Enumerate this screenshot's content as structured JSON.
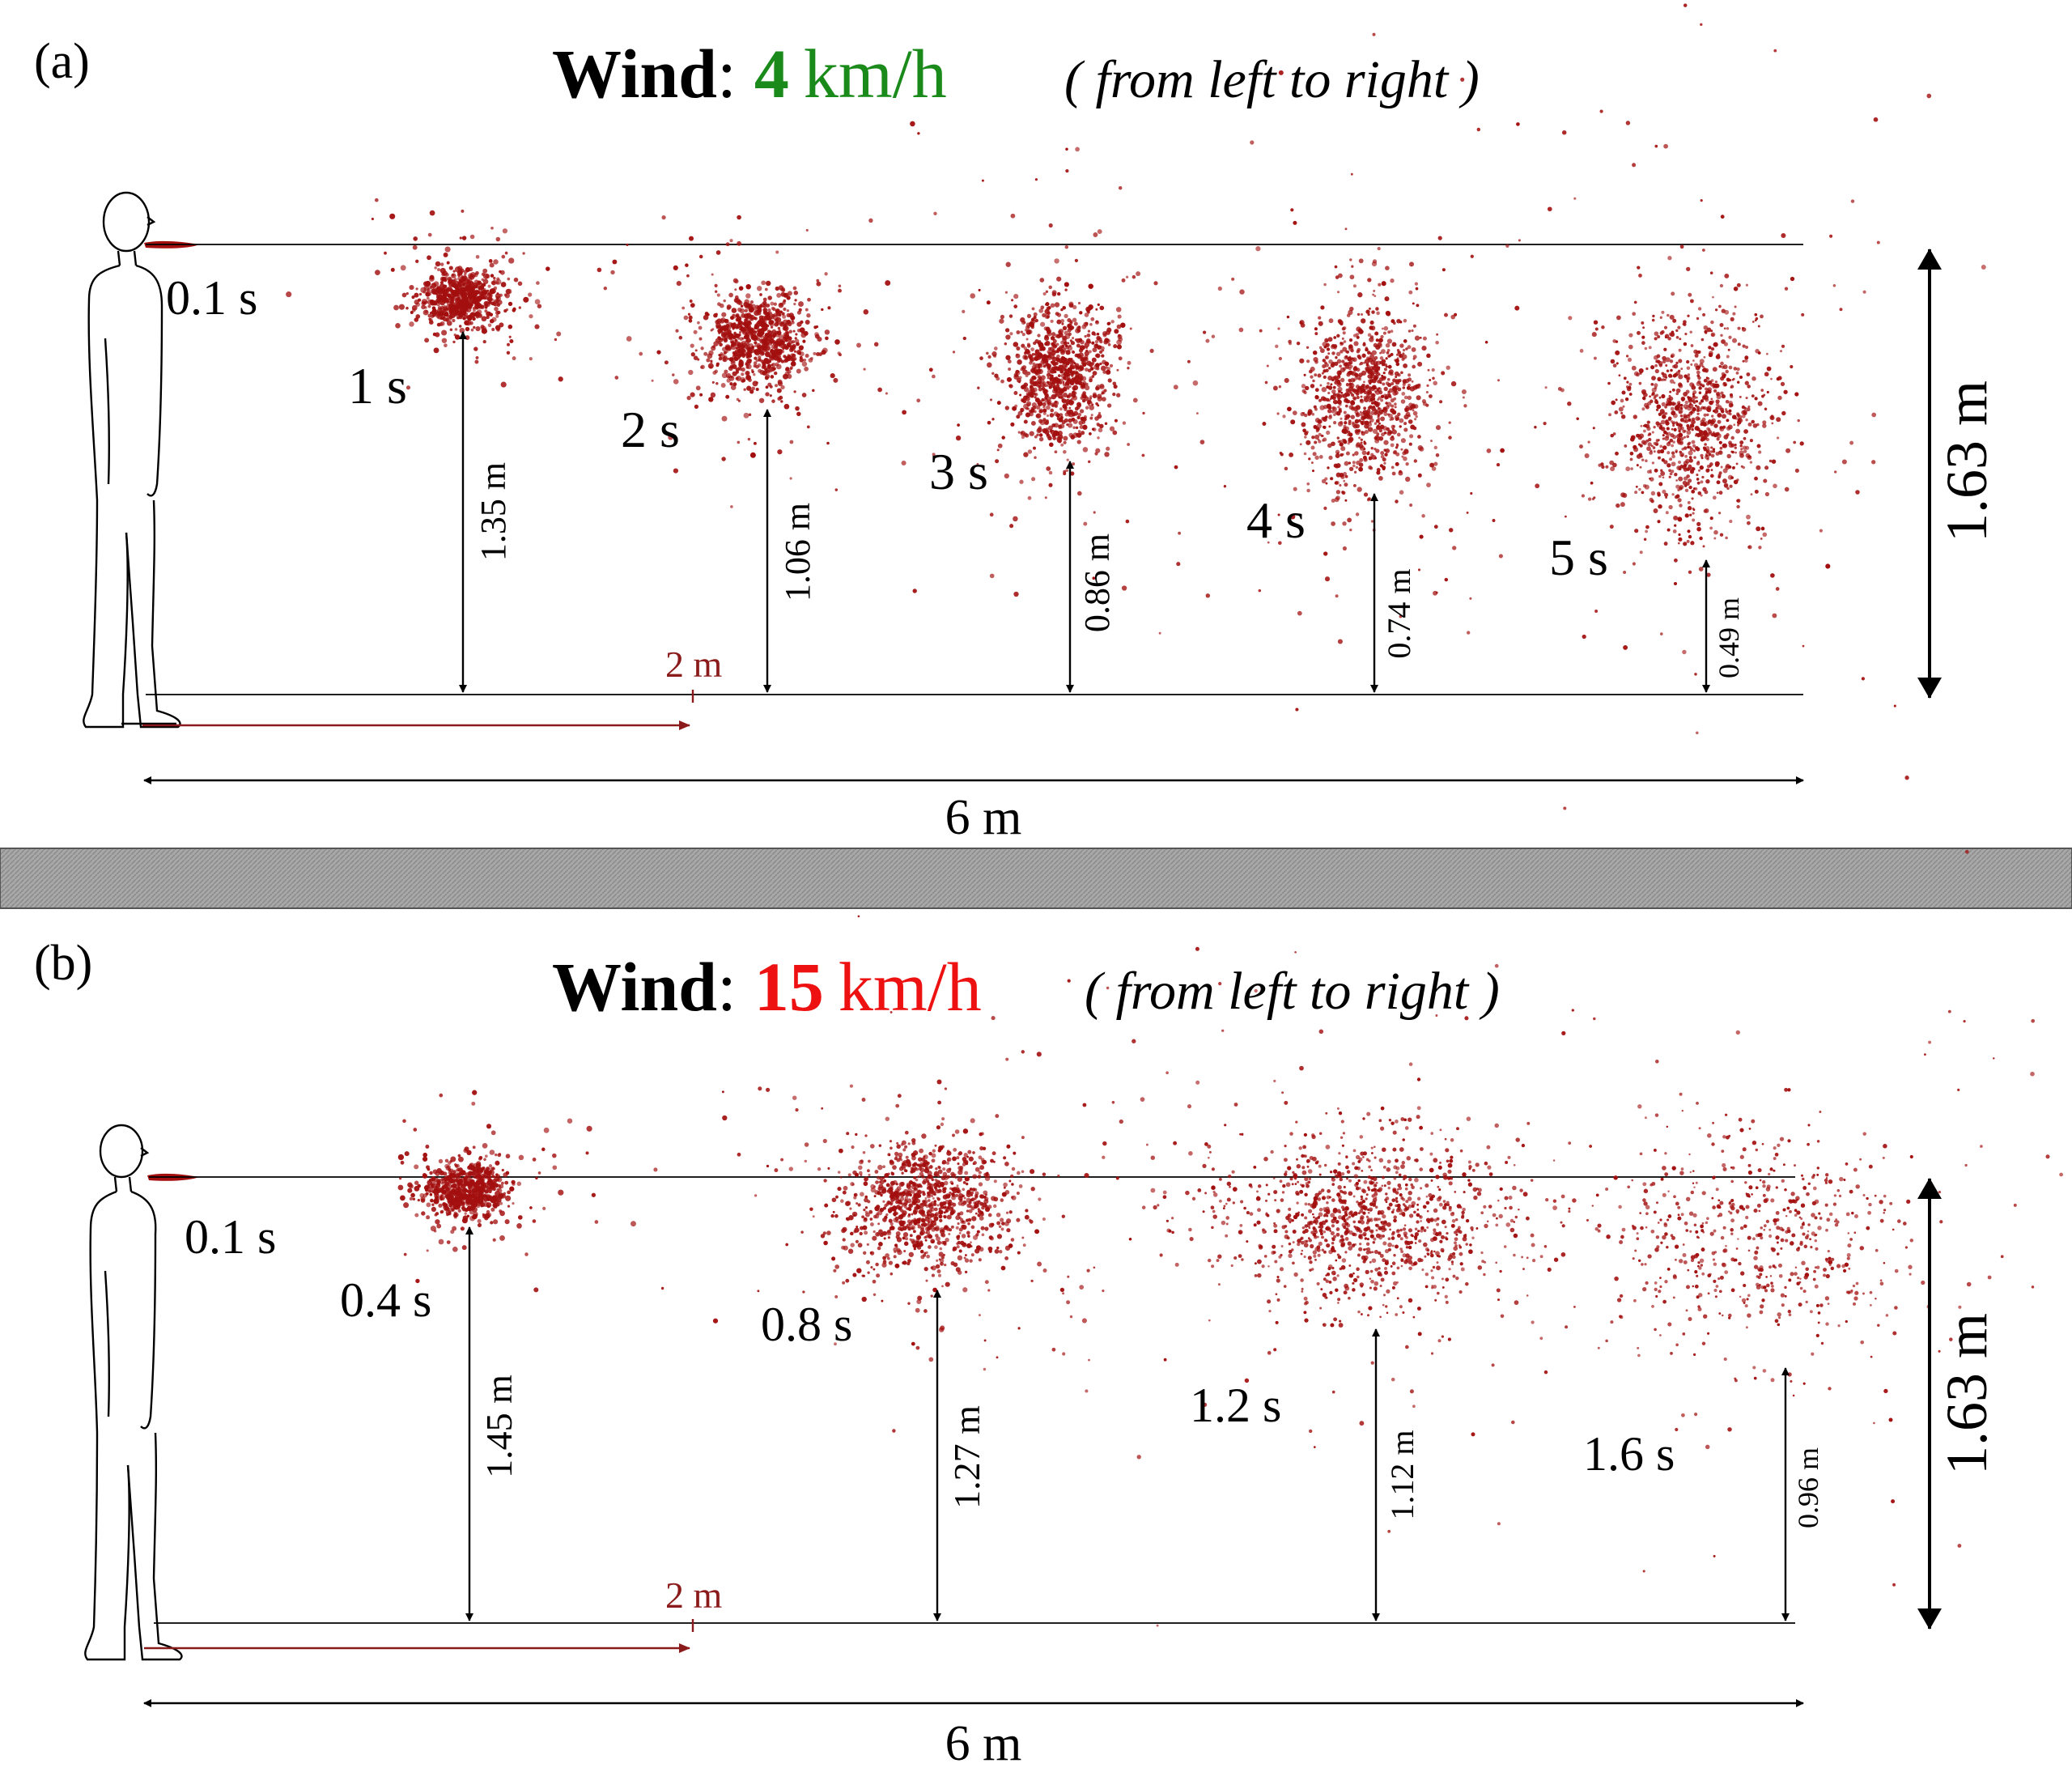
{
  "panels": [
    {
      "panel_label": "(a)",
      "title": {
        "prefix": "Wind",
        "colon": ":",
        "speed_value": "4",
        "speed_unit": "km/h",
        "direction_note": "( from left to right )",
        "speed_color": "#1a8a1a"
      },
      "person_height_label": "1.63 m",
      "distance_marker_label": "2 m",
      "total_distance_label": "6 m",
      "emission_label": "0.1 s",
      "clouds": [
        {
          "time_label": "1 s",
          "height_label": "1.35 m",
          "height_m": 1.35
        },
        {
          "time_label": "2 s",
          "height_label": "1.06 m",
          "height_m": 1.06
        },
        {
          "time_label": "3 s",
          "height_label": "0.86 m",
          "height_m": 0.86
        },
        {
          "time_label": "4 s",
          "height_label": "0.74 m",
          "height_m": 0.74
        },
        {
          "time_label": "5 s",
          "height_label": "0.49 m",
          "height_m": 0.49
        }
      ]
    },
    {
      "panel_label": "(b)",
      "title": {
        "prefix": "Wind",
        "colon": ":",
        "speed_value": "15",
        "speed_unit": "km/h",
        "direction_note": "( from left to right )",
        "speed_color": "#ee1111"
      },
      "person_height_label": "1.63 m",
      "distance_marker_label": "2 m",
      "total_distance_label": "6 m",
      "emission_label": "0.1 s",
      "clouds": [
        {
          "time_label": "0.4 s",
          "height_label": "1.45 m",
          "height_m": 1.45
        },
        {
          "time_label": "0.8 s",
          "height_label": "1.27 m",
          "height_m": 1.27
        },
        {
          "time_label": "1.2 s",
          "height_label": "1.12 m",
          "height_m": 1.12
        },
        {
          "time_label": "1.6 s",
          "height_label": "0.96 m",
          "height_m": 0.96
        }
      ]
    }
  ],
  "colors": {
    "droplet": "#a30f0f",
    "distance_marker": "#8b1a1a",
    "ink": "#000000",
    "separator": "#9a9a9a"
  }
}
